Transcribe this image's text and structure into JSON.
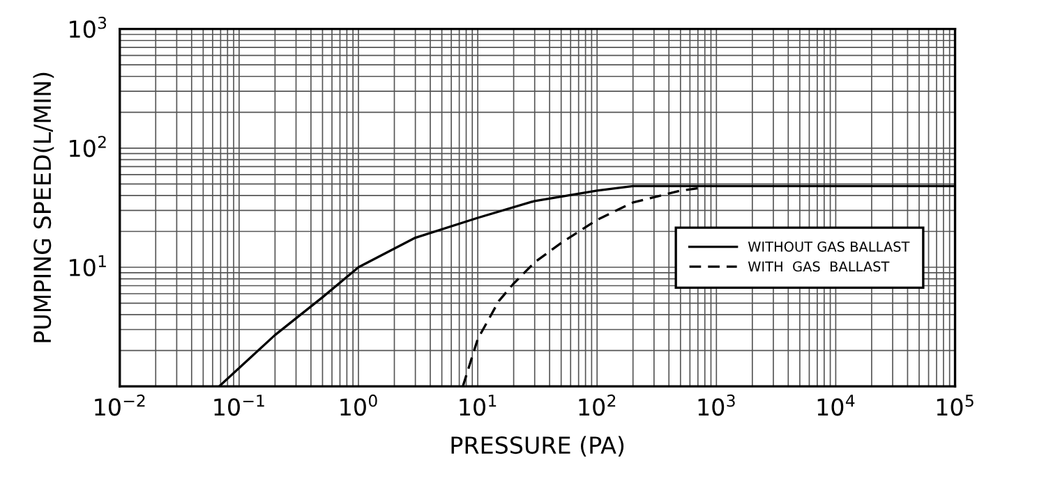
{
  "chart_data": {
    "type": "line",
    "xlabel": "PRESSURE (PA)",
    "ylabel": "PUMPING SPEED(L/MIN)",
    "log": "xy",
    "grid": true,
    "legend": "right",
    "xlim": [
      0.01,
      100000
    ],
    "ylim": [
      1,
      1000
    ],
    "xticks": [
      {
        "value": 0.01,
        "label": "10$^{−2}$"
      },
      {
        "value": 0.1,
        "label": "10$^{−1}$"
      },
      {
        "value": 1,
        "label": "10$^{0}$"
      },
      {
        "value": 10,
        "label": "10$^{1}$"
      },
      {
        "value": 100,
        "label": "10$^{2}$"
      },
      {
        "value": 1000,
        "label": "10$^{3}$"
      },
      {
        "value": 10000,
        "label": "10$^{4}$"
      },
      {
        "value": 100000,
        "label": "10$^{5}$"
      }
    ],
    "yticks": [
      {
        "value": 10,
        "label": "10$^{1}$"
      },
      {
        "value": 100,
        "label": "10$^{2}$"
      },
      {
        "value": 1000,
        "label": "10$^{3}$"
      }
    ],
    "series": [
      {
        "name": "WITHOUT GAS BALLAST",
        "color": "#000000",
        "line_style": "solid",
        "x": [
          0.068,
          0.2,
          0.5,
          1,
          3,
          10,
          30,
          100,
          200,
          1000,
          100000
        ],
        "values": [
          1,
          2.7,
          5.6,
          10,
          17.7,
          26,
          36,
          44,
          48,
          48,
          48
        ]
      },
      {
        "name": "WITH  GAS  BALLAST",
        "color": "#000000",
        "line_style": "dashed",
        "x": [
          7.5,
          10,
          15,
          20,
          30,
          50,
          100,
          200,
          500,
          700
        ],
        "values": [
          1,
          2.5,
          5.2,
          7.3,
          11,
          16,
          25,
          35,
          44,
          46
        ]
      }
    ]
  }
}
